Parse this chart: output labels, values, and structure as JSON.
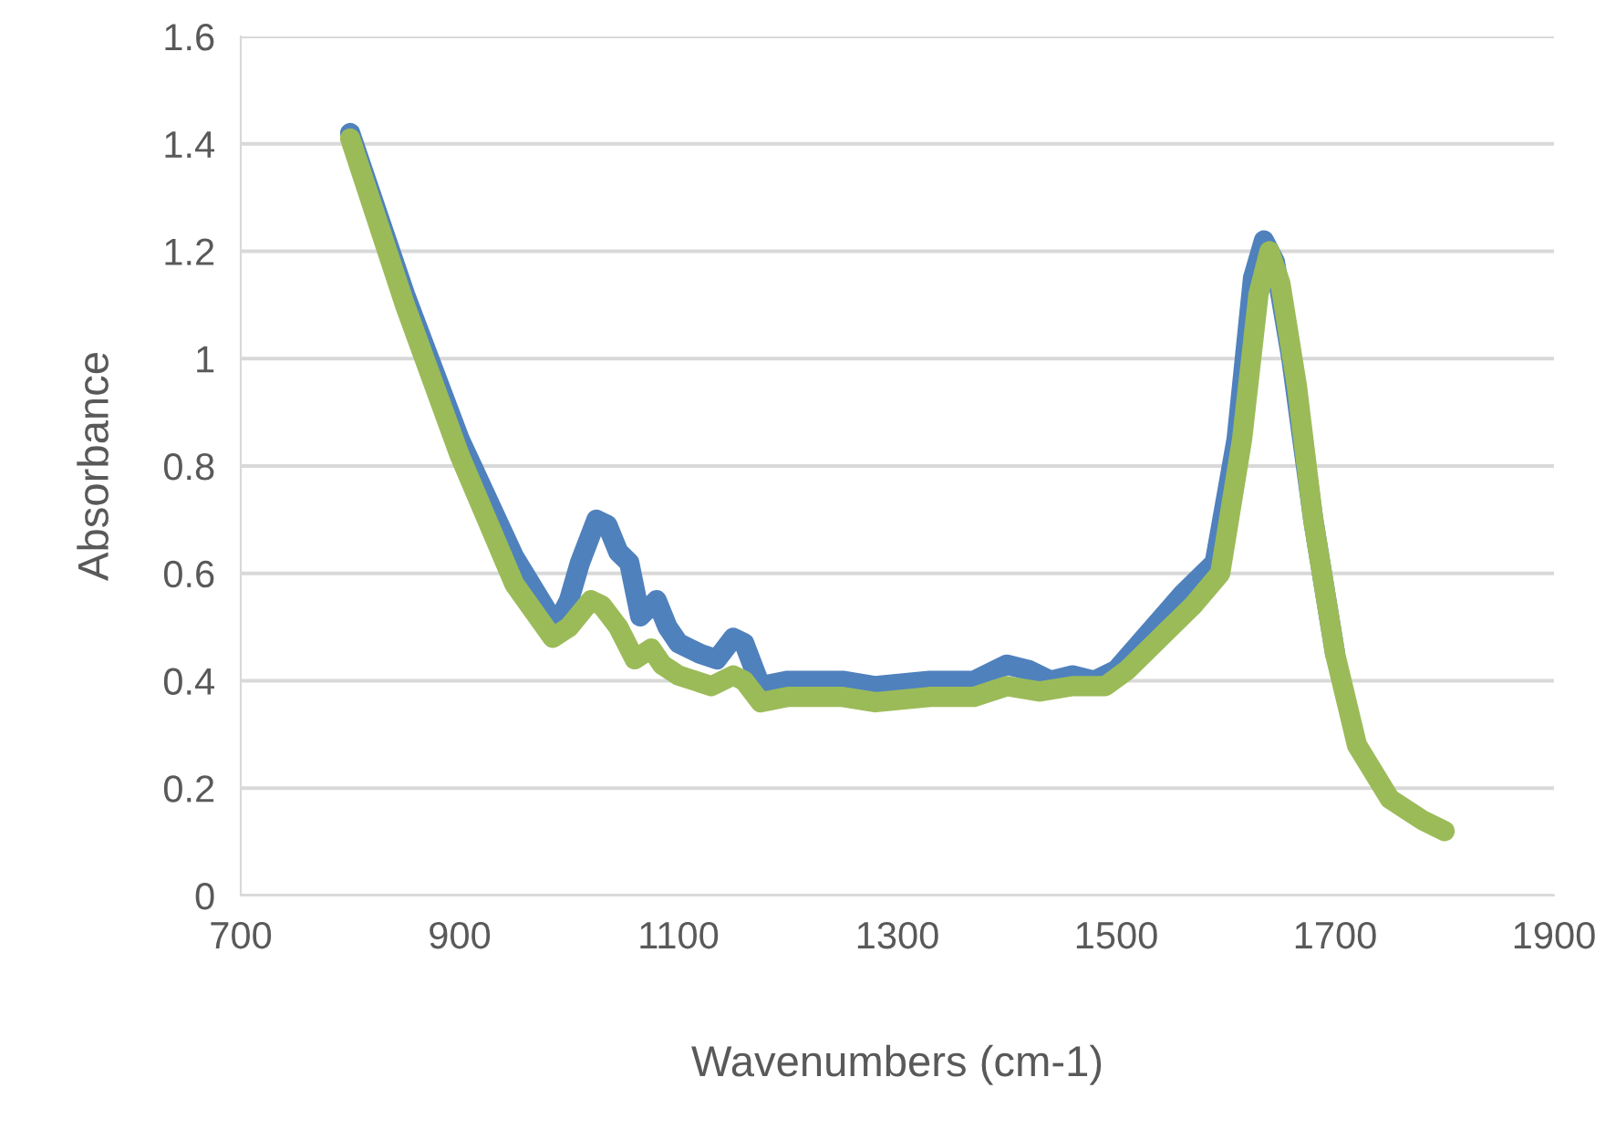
{
  "chart_data": {
    "type": "line",
    "xlabel": "Wavenumbers (cm-1)",
    "ylabel": "Absorbance",
    "xlim": [
      700,
      1900
    ],
    "xticks": [
      700,
      900,
      1100,
      1300,
      1500,
      1700,
      1900
    ],
    "ylim": [
      0,
      1.6
    ],
    "yticks": [
      0,
      0.2,
      0.4,
      0.6,
      0.8,
      1,
      1.2,
      1.4,
      1.6
    ],
    "grid": "y",
    "line_style": "solid",
    "series": [
      {
        "color": "#4f81bd",
        "x": [
          800,
          850,
          900,
          950,
          980,
          990,
          1000,
          1010,
          1025,
          1035,
          1045,
          1055,
          1065,
          1080,
          1090,
          1100,
          1120,
          1135,
          1150,
          1160,
          1175,
          1200,
          1250,
          1280,
          1330,
          1370,
          1400,
          1420,
          1440,
          1460,
          1480,
          1500,
          1530,
          1560,
          1590,
          1610,
          1625,
          1635,
          1645,
          1660,
          1680,
          1700
        ],
        "values": [
          1.42,
          1.12,
          0.85,
          0.63,
          0.53,
          0.51,
          0.55,
          0.62,
          0.7,
          0.69,
          0.64,
          0.62,
          0.52,
          0.55,
          0.5,
          0.47,
          0.45,
          0.44,
          0.48,
          0.47,
          0.39,
          0.4,
          0.4,
          0.39,
          0.4,
          0.4,
          0.43,
          0.42,
          0.4,
          0.41,
          0.4,
          0.42,
          0.49,
          0.56,
          0.62,
          0.85,
          1.15,
          1.22,
          1.18,
          1.0,
          0.7,
          0.45
        ]
      },
      {
        "color": "#9bbb59",
        "x": [
          800,
          850,
          900,
          950,
          985,
          1000,
          1020,
          1030,
          1045,
          1060,
          1075,
          1085,
          1100,
          1130,
          1150,
          1160,
          1175,
          1200,
          1250,
          1280,
          1330,
          1370,
          1400,
          1430,
          1460,
          1490,
          1510,
          1540,
          1570,
          1595,
          1615,
          1630,
          1640,
          1650,
          1665,
          1680,
          1700,
          1720,
          1750,
          1780,
          1800
        ],
        "values": [
          1.41,
          1.1,
          0.82,
          0.58,
          0.48,
          0.5,
          0.55,
          0.54,
          0.5,
          0.44,
          0.46,
          0.43,
          0.41,
          0.39,
          0.41,
          0.4,
          0.36,
          0.37,
          0.37,
          0.36,
          0.37,
          0.37,
          0.39,
          0.38,
          0.39,
          0.39,
          0.42,
          0.48,
          0.54,
          0.6,
          0.85,
          1.12,
          1.2,
          1.14,
          0.95,
          0.7,
          0.45,
          0.28,
          0.18,
          0.14,
          0.12
        ]
      }
    ]
  }
}
